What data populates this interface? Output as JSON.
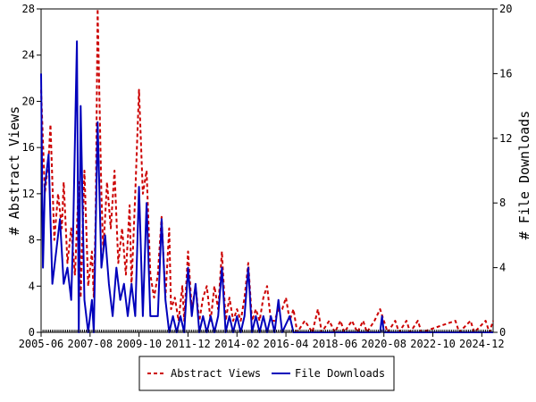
{
  "chart_data": {
    "type": "line",
    "title": "",
    "xlabel": "",
    "ylabel_left": "# Abstract Views",
    "ylabel_right": "# File Downloads",
    "ylim_left": [
      0,
      28
    ],
    "ylim_right": [
      0,
      20
    ],
    "yticks_left": [
      "0",
      "4",
      "8",
      "12",
      "16",
      "20",
      "24",
      "28"
    ],
    "yticks_right": [
      "0",
      "4",
      "8",
      "12",
      "16",
      "20"
    ],
    "xticks": [
      "2005-06",
      "2007-08",
      "2009-10",
      "2011-12",
      "2014-02",
      "2016-04",
      "2018-06",
      "2020-08",
      "2022-10",
      "2024-12"
    ],
    "x_start": "2005-06",
    "x_end": "2025-06",
    "grid": false,
    "legend_position": "bottom",
    "series": [
      {
        "name": "Abstract Views",
        "axis": "left",
        "color": "#cc0000",
        "style": "dashed",
        "points": [
          [
            "2005-06",
            21
          ],
          [
            "2005-08",
            12
          ],
          [
            "2005-10",
            15
          ],
          [
            "2005-11",
            18
          ],
          [
            "2006-01",
            8
          ],
          [
            "2006-03",
            12
          ],
          [
            "2006-05",
            9
          ],
          [
            "2006-06",
            13
          ],
          [
            "2006-08",
            6
          ],
          [
            "2006-10",
            9
          ],
          [
            "2006-12",
            5
          ],
          [
            "2007-02",
            13
          ],
          [
            "2007-03",
            3
          ],
          [
            "2007-05",
            14
          ],
          [
            "2007-07",
            4
          ],
          [
            "2007-09",
            7
          ],
          [
            "2007-10",
            3
          ],
          [
            "2007-11",
            10
          ],
          [
            "2007-12",
            28
          ],
          [
            "2008-02",
            12
          ],
          [
            "2008-03",
            7
          ],
          [
            "2008-05",
            13
          ],
          [
            "2008-07",
            9
          ],
          [
            "2008-09",
            14
          ],
          [
            "2008-11",
            6
          ],
          [
            "2009-01",
            9
          ],
          [
            "2009-03",
            5
          ],
          [
            "2009-05",
            11
          ],
          [
            "2009-06",
            4
          ],
          [
            "2009-08",
            12
          ],
          [
            "2009-10",
            21
          ],
          [
            "2009-12",
            12
          ],
          [
            "2010-02",
            14
          ],
          [
            "2010-04",
            5
          ],
          [
            "2010-06",
            3
          ],
          [
            "2010-08",
            5
          ],
          [
            "2010-10",
            10
          ],
          [
            "2010-12",
            3
          ],
          [
            "2011-02",
            9
          ],
          [
            "2011-03",
            2
          ],
          [
            "2011-05",
            3
          ],
          [
            "2011-07",
            1
          ],
          [
            "2011-09",
            4
          ],
          [
            "2011-10",
            1
          ],
          [
            "2011-12",
            7
          ],
          [
            "2012-02",
            2
          ],
          [
            "2012-04",
            4
          ],
          [
            "2012-06",
            1
          ],
          [
            "2012-08",
            3
          ],
          [
            "2012-10",
            4
          ],
          [
            "2012-12",
            1
          ],
          [
            "2013-02",
            4
          ],
          [
            "2013-04",
            2
          ],
          [
            "2013-06",
            7
          ],
          [
            "2013-08",
            1
          ],
          [
            "2013-10",
            3
          ],
          [
            "2013-12",
            1
          ],
          [
            "2014-02",
            2
          ],
          [
            "2014-04",
            1
          ],
          [
            "2014-06",
            3
          ],
          [
            "2014-08",
            6
          ],
          [
            "2014-10",
            1
          ],
          [
            "2014-12",
            2
          ],
          [
            "2015-02",
            1
          ],
          [
            "2015-04",
            3
          ],
          [
            "2015-06",
            4
          ],
          [
            "2015-08",
            1
          ],
          [
            "2015-10",
            1
          ],
          [
            "2015-12",
            2
          ],
          [
            "2016-02",
            2
          ],
          [
            "2016-04",
            3
          ],
          [
            "2016-06",
            1
          ],
          [
            "2016-08",
            2
          ],
          [
            "2016-10",
            0
          ],
          [
            "2017-02",
            1
          ],
          [
            "2017-06",
            0
          ],
          [
            "2017-09",
            2
          ],
          [
            "2017-11",
            0
          ],
          [
            "2018-03",
            1
          ],
          [
            "2018-06",
            0
          ],
          [
            "2018-09",
            1
          ],
          [
            "2018-11",
            0
          ],
          [
            "2019-03",
            1
          ],
          [
            "2019-06",
            0
          ],
          [
            "2019-09",
            1
          ],
          [
            "2019-11",
            0
          ],
          [
            "2020-03",
            1
          ],
          [
            "2020-06",
            2
          ],
          [
            "2020-08",
            1
          ],
          [
            "2020-10",
            0
          ],
          [
            "2021-02",
            1
          ],
          [
            "2021-04",
            0
          ],
          [
            "2021-08",
            1
          ],
          [
            "2021-10",
            0
          ],
          [
            "2022-02",
            1
          ],
          [
            "2022-04",
            0
          ],
          [
            "2023-10",
            1
          ],
          [
            "2023-12",
            0
          ],
          [
            "2024-06",
            1
          ],
          [
            "2024-08",
            0
          ],
          [
            "2025-02",
            1
          ],
          [
            "2025-04",
            0
          ],
          [
            "2025-06",
            1
          ]
        ]
      },
      {
        "name": "File Downloads",
        "axis": "right",
        "color": "#0000bb",
        "style": "solid",
        "points": [
          [
            "2005-06",
            16
          ],
          [
            "2005-07",
            4
          ],
          [
            "2005-08",
            9
          ],
          [
            "2005-10",
            11
          ],
          [
            "2005-12",
            3
          ],
          [
            "2006-02",
            5
          ],
          [
            "2006-04",
            7
          ],
          [
            "2006-06",
            3
          ],
          [
            "2006-08",
            4
          ],
          [
            "2006-10",
            2
          ],
          [
            "2006-11",
            6
          ],
          [
            "2007-01",
            18
          ],
          [
            "2007-02",
            0
          ],
          [
            "2007-03",
            14
          ],
          [
            "2007-05",
            2
          ],
          [
            "2007-07",
            0
          ],
          [
            "2007-09",
            2
          ],
          [
            "2007-10",
            0
          ],
          [
            "2007-12",
            13
          ],
          [
            "2008-02",
            4
          ],
          [
            "2008-04",
            6
          ],
          [
            "2008-06",
            3
          ],
          [
            "2008-08",
            1
          ],
          [
            "2008-10",
            4
          ],
          [
            "2008-12",
            2
          ],
          [
            "2009-02",
            3
          ],
          [
            "2009-04",
            1
          ],
          [
            "2009-06",
            3
          ],
          [
            "2009-08",
            1
          ],
          [
            "2009-10",
            9
          ],
          [
            "2009-12",
            1
          ],
          [
            "2010-02",
            8
          ],
          [
            "2010-04",
            1
          ],
          [
            "2010-06",
            1
          ],
          [
            "2010-08",
            1
          ],
          [
            "2010-10",
            7
          ],
          [
            "2010-12",
            2
          ],
          [
            "2011-02",
            0
          ],
          [
            "2011-04",
            1
          ],
          [
            "2011-06",
            0
          ],
          [
            "2011-08",
            1
          ],
          [
            "2011-10",
            0
          ],
          [
            "2011-12",
            4
          ],
          [
            "2012-02",
            1
          ],
          [
            "2012-04",
            3
          ],
          [
            "2012-06",
            0
          ],
          [
            "2012-08",
            1
          ],
          [
            "2012-10",
            0
          ],
          [
            "2012-12",
            1
          ],
          [
            "2013-02",
            0
          ],
          [
            "2013-04",
            1
          ],
          [
            "2013-06",
            4
          ],
          [
            "2013-08",
            0
          ],
          [
            "2013-10",
            1
          ],
          [
            "2013-12",
            0
          ],
          [
            "2014-02",
            1
          ],
          [
            "2014-04",
            0
          ],
          [
            "2014-06",
            1
          ],
          [
            "2014-08",
            4
          ],
          [
            "2014-10",
            0
          ],
          [
            "2014-12",
            1
          ],
          [
            "2015-02",
            0
          ],
          [
            "2015-04",
            1
          ],
          [
            "2015-06",
            0
          ],
          [
            "2015-08",
            1
          ],
          [
            "2015-10",
            0
          ],
          [
            "2015-12",
            2
          ],
          [
            "2016-02",
            0
          ],
          [
            "2016-06",
            1
          ],
          [
            "2016-08",
            0
          ],
          [
            "2020-06",
            0
          ],
          [
            "2020-07",
            1
          ],
          [
            "2020-08",
            0
          ],
          [
            "2025-06",
            0
          ]
        ]
      }
    ]
  }
}
